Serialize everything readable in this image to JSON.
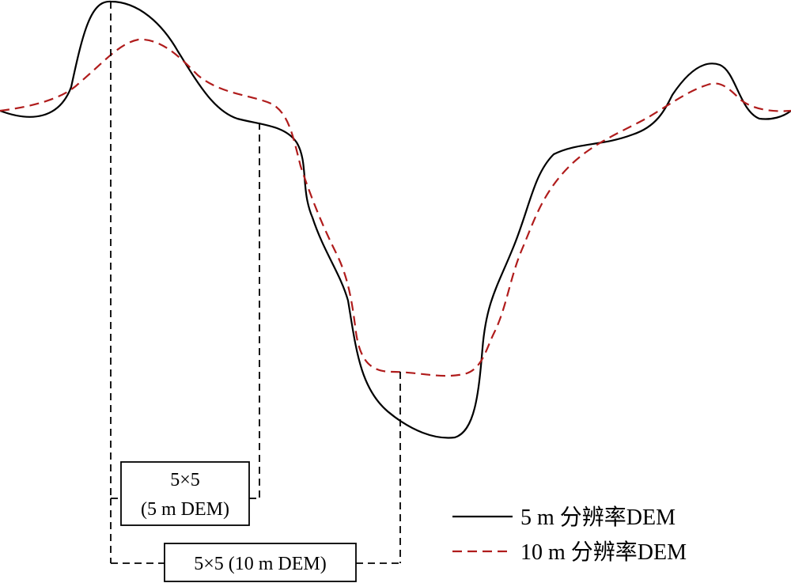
{
  "diagram": {
    "profiles": [
      {
        "id": "dem5",
        "label": "5 m 分辨率DEM",
        "color": "#000000",
        "dash": "solid"
      },
      {
        "id": "dem10",
        "label": "10 m 分辨率DEM",
        "color": "#b01c1c",
        "dash": "dashed"
      }
    ],
    "window_5m": {
      "line1": "5×5",
      "line2": "(5 m DEM)"
    },
    "window_10m": {
      "label": "5×5 (10 m DEM)"
    },
    "bracket_color": "#000000"
  }
}
